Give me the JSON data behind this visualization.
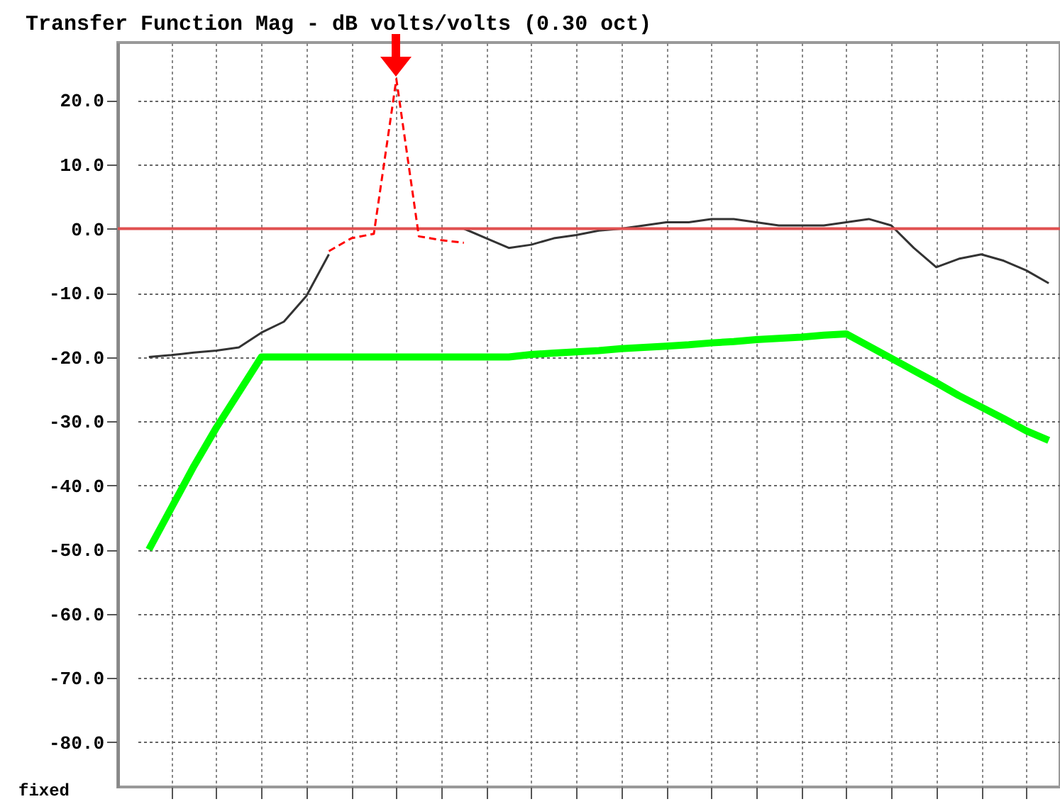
{
  "chart_data": {
    "type": "line",
    "title": "Transfer Function Mag - dB volts/volts (0.30 oct)",
    "categories": [
      null,
      null,
      null,
      null,
      null,
      null,
      null,
      null,
      null,
      null,
      null,
      null,
      null,
      null,
      null,
      null,
      null,
      null,
      null,
      null,
      null,
      null,
      null,
      null,
      null,
      null,
      null,
      null,
      null,
      null,
      null,
      null,
      null,
      null,
      null,
      null,
      null,
      null,
      null,
      null,
      null
    ],
    "series": [
      {
        "color": "#333333",
        "line_style": "solid",
        "values": [
          -20,
          -19.7,
          -19.3,
          -19,
          -18.5,
          -16.2,
          -14.5,
          -10.5,
          -4,
          null,
          null,
          null,
          null,
          null,
          0,
          -1.5,
          -3,
          -2.5,
          -1.5,
          -1,
          -0.3,
          0,
          0.5,
          1,
          1,
          1.5,
          1.5,
          1,
          0.5,
          0.5,
          0.5,
          1,
          1.5,
          0.5,
          -3,
          -6,
          -4.7,
          -4,
          -5,
          -6.5,
          -8.5
        ]
      },
      {
        "color": "#ff0000",
        "line_style": "dashed",
        "values": [
          null,
          null,
          null,
          null,
          null,
          null,
          null,
          null,
          -3.5,
          -1.5,
          -0.8,
          23.3,
          -1.2,
          -1.8,
          -2.2,
          null,
          null,
          null,
          null,
          null,
          null,
          null,
          null,
          null,
          null,
          null,
          null,
          null,
          null,
          null,
          null,
          null,
          null,
          null,
          null,
          null,
          null,
          null,
          null,
          null,
          null
        ]
      },
      {
        "color": "#00ff00",
        "line_style": "solid",
        "values": [
          -50,
          -43.5,
          -37,
          -31,
          -25.5,
          -20,
          -20,
          -20,
          -20,
          -20,
          -20,
          -20,
          -20,
          -20,
          -20,
          -20,
          -20,
          -19.6,
          -19.4,
          -19.2,
          -19,
          -18.7,
          -18.5,
          -18.3,
          -18.1,
          -17.8,
          -17.6,
          -17.3,
          -17.1,
          -16.9,
          -16.6,
          -16.4,
          -18.3,
          -20.2,
          -22.1,
          -24,
          -26,
          -27.8,
          -29.6,
          -31.5,
          -33
        ]
      }
    ],
    "ylim": [
      -87,
      29
    ],
    "yticks": [
      {
        "value": 20,
        "label": "20.0"
      },
      {
        "value": 10,
        "label": "10.0"
      },
      {
        "value": 0,
        "label": "0.0"
      },
      {
        "value": -10,
        "label": "-10.0"
      },
      {
        "value": -20,
        "label": "-20.0"
      },
      {
        "value": -30,
        "label": "-30.0"
      },
      {
        "value": -40,
        "label": "-40.0"
      },
      {
        "value": -50,
        "label": "-50.0"
      },
      {
        "value": -60,
        "label": "-60.0"
      },
      {
        "value": -70,
        "label": "-70.0"
      },
      {
        "value": -80,
        "label": "-80.0"
      }
    ],
    "ref_lines": [
      {
        "axis": "y",
        "value": 0,
        "color": "#e05050"
      }
    ],
    "annotations": [
      "fixed"
    ],
    "grid": true,
    "tick_labels": "y",
    "marker": "none"
  }
}
